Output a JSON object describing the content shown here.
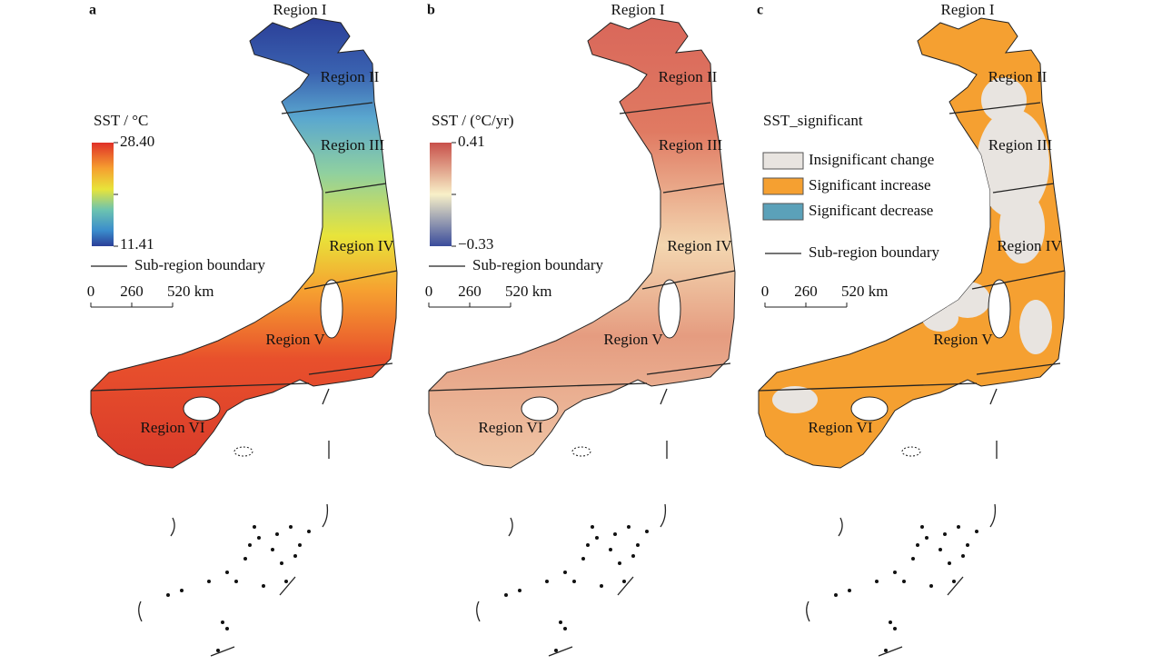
{
  "panels": [
    {
      "letter": "a",
      "regions": [
        "Region I",
        "Region II",
        "Region III",
        "Region IV",
        "Region V",
        "Region VI"
      ],
      "legend": {
        "title": "SST / °C",
        "max": "28.40",
        "min": "11.41"
      },
      "boundary_label": "Sub-region boundary",
      "scale": [
        "0",
        "260",
        "520 km"
      ]
    },
    {
      "letter": "b",
      "regions": [
        "Region I",
        "Region II",
        "Region III",
        "Region IV",
        "Region V",
        "Region VI"
      ],
      "legend": {
        "title": "SST / (°C/yr)",
        "max": "0.41",
        "min": "−0.33"
      },
      "boundary_label": "Sub-region boundary",
      "scale": [
        "0",
        "260",
        "520 km"
      ]
    },
    {
      "letter": "c",
      "regions": [
        "Region I",
        "Region II",
        "Region III",
        "Region IV",
        "Region V",
        "Region VI"
      ],
      "legend": {
        "title": "SST_significant",
        "items": [
          {
            "name": "Insignificant change",
            "color": "#e8e4e0"
          },
          {
            "name": "Significant increase",
            "color": "#f5a031"
          },
          {
            "name": "Significant decrease",
            "color": "#5ba1b9"
          }
        ]
      },
      "boundary_label": "Sub-region boundary",
      "scale": [
        "0",
        "260",
        "520 km"
      ]
    }
  ]
}
